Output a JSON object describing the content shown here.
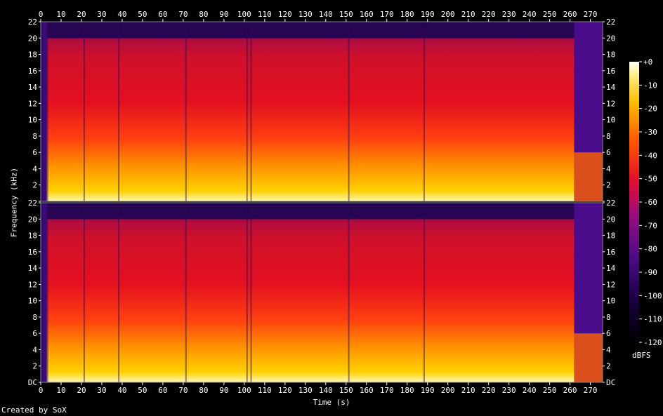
{
  "credit": "Created by SoX",
  "chart_data": {
    "type": "heatmap",
    "xlabel": "Time (s)",
    "ylabel": "Frequency (kHz)",
    "colorbar_label": "dBFS",
    "x_ticks": [
      0,
      10,
      20,
      30,
      40,
      50,
      60,
      70,
      80,
      90,
      100,
      110,
      120,
      130,
      140,
      150,
      160,
      170,
      180,
      190,
      200,
      210,
      220,
      230,
      240,
      250,
      260,
      270
    ],
    "xlim": [
      0,
      276
    ],
    "y_ticks": [
      "DC",
      "2",
      "4",
      "6",
      "8",
      "10",
      "12",
      "14",
      "16",
      "18",
      "20",
      "22"
    ],
    "ylim_khz": [
      0,
      22
    ],
    "colorbar_ticks": [
      "+0",
      "-10",
      "-20",
      "-30",
      "-40",
      "-50",
      "-60",
      "-70",
      "-80",
      "-90",
      "-100",
      "-110",
      "-120"
    ],
    "colorbar_range": [
      -120,
      0
    ],
    "channels": 2,
    "colors": {
      "low": "#000000",
      "mid_low": "#3a0a78",
      "mid": "#d0102a",
      "high": "#ffb000",
      "top": "#ffffff"
    }
  }
}
